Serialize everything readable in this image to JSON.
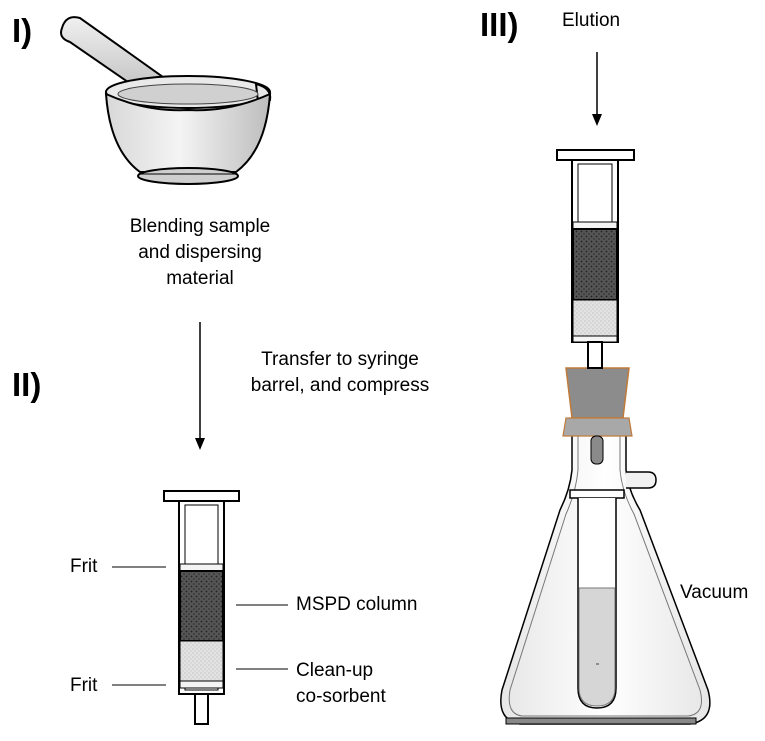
{
  "steps": {
    "step1": "I)",
    "step2": "II)",
    "step3": "III)"
  },
  "labels": {
    "blending": [
      "Blending sample",
      "and dispersing",
      "material"
    ],
    "transfer": [
      "Transfer to syringe",
      "barrel, and compress"
    ],
    "frit_top": "Frit",
    "frit_bottom": "Frit",
    "mspd": "MSPD column",
    "cleanup": [
      "Clean-up",
      "co-sorbent"
    ],
    "elution": "Elution",
    "vacuum": "Vacuum"
  },
  "colors": {
    "stopper": "#8c8c8c",
    "stopper_edge": "#c07a3a",
    "packing_dark": "#4a4a4a",
    "packing_light": "#d8d8d8",
    "liquid": "#d6d6d6"
  }
}
